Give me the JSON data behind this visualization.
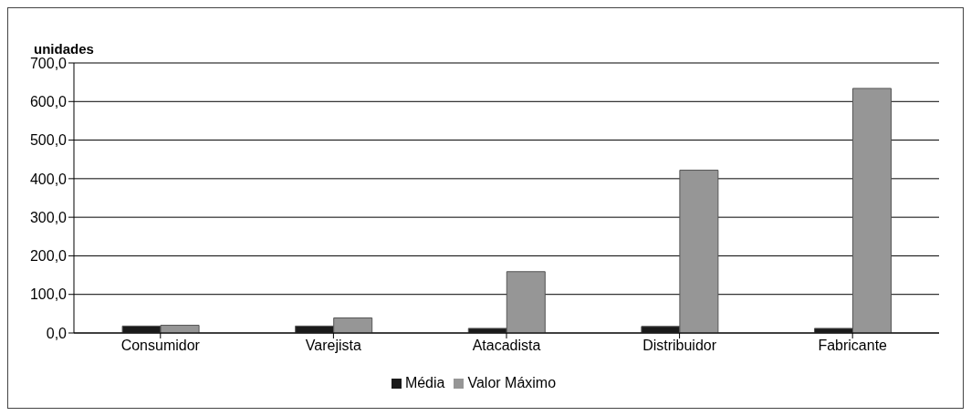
{
  "chart_data": {
    "type": "bar",
    "ylabel": "unidades",
    "categories": [
      "Consumidor",
      "Varejista",
      "Atacadista",
      "Distribuidor",
      "Fabricante"
    ],
    "series": [
      {
        "name": "Média",
        "color": "#1a1a1a",
        "values": [
          18,
          18,
          12,
          17,
          12
        ]
      },
      {
        "name": "Valor Máximo",
        "color": "#969696",
        "values": [
          20,
          39,
          159,
          422,
          634
        ]
      }
    ],
    "ylim": [
      0,
      700
    ],
    "yticks": [
      {
        "value": 0,
        "label": "0,0"
      },
      {
        "value": 100,
        "label": "100,0"
      },
      {
        "value": 200,
        "label": "200,0"
      },
      {
        "value": 300,
        "label": "300,0"
      },
      {
        "value": 400,
        "label": "400,0"
      },
      {
        "value": 500,
        "label": "500,0"
      },
      {
        "value": 600,
        "label": "600,0"
      },
      {
        "value": 700,
        "label": "700,0"
      }
    ],
    "grid": "y",
    "legend": "bottom"
  }
}
